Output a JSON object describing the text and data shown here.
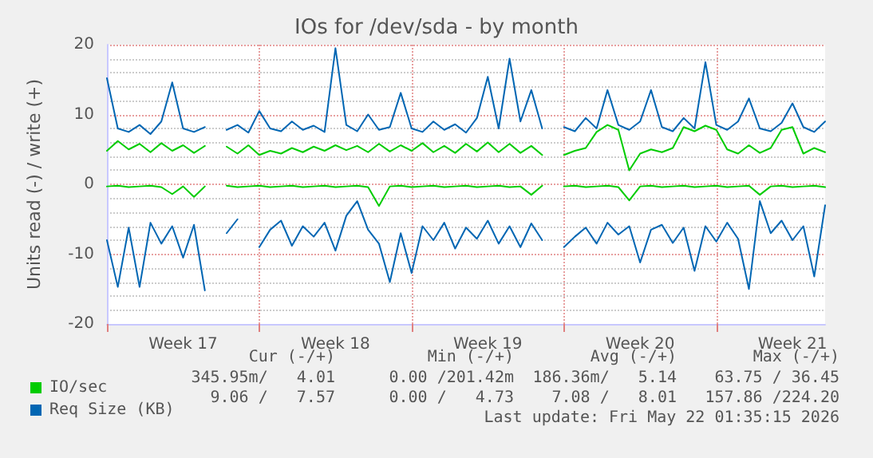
{
  "chart_data": {
    "type": "line",
    "title": "IOs for /dev/sda - by month",
    "ylabel": "Units read (-) / write (+)",
    "categories": [
      null,
      null,
      null,
      null,
      null,
      null,
      null,
      "Week 17",
      null,
      null,
      null,
      null,
      null,
      null,
      null,
      null,
      null,
      null,
      null,
      null,
      null,
      "Week 18",
      null,
      null,
      null,
      null,
      null,
      null,
      null,
      null,
      null,
      null,
      null,
      null,
      null,
      "Week 19",
      null,
      null,
      null,
      null,
      null,
      null,
      null,
      null,
      null,
      null,
      null,
      null,
      null,
      "Week 20",
      null,
      null,
      null,
      null,
      null,
      null,
      null,
      null,
      null,
      null,
      null,
      null,
      null,
      "Week 21",
      null,
      null,
      null
    ],
    "ylim": [
      -20,
      20
    ],
    "yticks": [
      -20,
      -10,
      0,
      10,
      20
    ],
    "grid": true,
    "legend": "bottom left",
    "marker": "none",
    "line_style": "solid",
    "series": [
      {
        "name": "IO/sec",
        "color": "#00cc00",
        "values": [
          4.8,
          6.2,
          5,
          5.8,
          4.6,
          5.9,
          4.8,
          5.6,
          4.5,
          5.5,
          null,
          5.4,
          4.4,
          5.6,
          4.2,
          4.8,
          4.4,
          5.2,
          4.6,
          5.4,
          4.8,
          5.6,
          4.9,
          5.5,
          4.6,
          5.8,
          4.7,
          5.6,
          4.8,
          5.9,
          4.6,
          5.5,
          4.5,
          5.8,
          4.7,
          6,
          4.6,
          5.8,
          4.5,
          5.5,
          4.2,
          null,
          4.2,
          4.8,
          5.2,
          7.5,
          8.5,
          7.8,
          2,
          4.4,
          5,
          4.6,
          5.2,
          8.2,
          7.6,
          8.4,
          7.8,
          5,
          4.4,
          5.6,
          4.5,
          5.2,
          7.8,
          8.2,
          4.4,
          5.2,
          4.6
        ]
      },
      {
        "color": "#00cc00",
        "values": [
          -0.3,
          -0.2,
          -0.4,
          -0.3,
          -0.2,
          -0.4,
          -1.4,
          -0.3,
          -1.8,
          -0.3,
          null,
          -0.2,
          -0.4,
          -0.3,
          -0.2,
          -0.4,
          -0.3,
          -0.2,
          -0.4,
          -0.3,
          -0.2,
          -0.4,
          -0.3,
          -0.2,
          -0.4,
          -3.1,
          -0.3,
          -0.2,
          -0.4,
          -0.3,
          -0.2,
          -0.4,
          -0.3,
          -0.2,
          -0.4,
          -0.3,
          -0.2,
          -0.4,
          -0.3,
          -1.5,
          -0.2,
          null,
          -0.3,
          -0.2,
          -0.4,
          -0.3,
          -0.2,
          -0.4,
          -2.3,
          -0.3,
          -0.2,
          -0.4,
          -0.3,
          -0.2,
          -0.4,
          -0.3,
          -0.2,
          -0.4,
          -0.3,
          -0.2,
          -1.5,
          -0.3,
          -0.2,
          -0.4,
          -0.3,
          -0.2,
          -0.4
        ]
      },
      {
        "name": "Req Size (KB)",
        "color": "#0066b3",
        "values": [
          15.2,
          8,
          7.5,
          8.5,
          7.2,
          9,
          14.6,
          8,
          7.5,
          8.2,
          null,
          7.8,
          8.5,
          7.4,
          10.5,
          8,
          7.6,
          9,
          7.8,
          8.4,
          7.5,
          19.5,
          8.5,
          7.6,
          10,
          7.8,
          8.2,
          13.1,
          8,
          7.5,
          9,
          7.8,
          8.6,
          7.4,
          9.5,
          15.4,
          8,
          18,
          9,
          13.5,
          8,
          null,
          8.2,
          7.6,
          9.5,
          8,
          13.5,
          8.5,
          7.8,
          9,
          13.5,
          8.2,
          7.6,
          9.5,
          8,
          17.5,
          8.5,
          7.8,
          9,
          12.3,
          8,
          7.6,
          8.8,
          11.6,
          8.2,
          7.5,
          9
        ]
      },
      {
        "color": "#0066b3",
        "values": [
          -8,
          -14.7,
          -6.2,
          -14.7,
          -5.5,
          -8.5,
          -6,
          -10.5,
          -5.8,
          -15.2,
          null,
          -7,
          -5,
          null,
          -9,
          -6.5,
          -5.2,
          -8.8,
          -6,
          -7.5,
          -5.5,
          -9.5,
          -4.5,
          -2.4,
          -6.5,
          -8.5,
          -14,
          -7,
          -12.7,
          -6,
          -8,
          -5.5,
          -9.2,
          -6.2,
          -7.8,
          -5.2,
          -8.5,
          -6,
          -9,
          -5.6,
          -8,
          null,
          -9,
          -7.5,
          -6.2,
          -8.5,
          -5.5,
          -7.2,
          -6,
          -11.2,
          -6.5,
          -5.8,
          -8.4,
          -6.2,
          -12.4,
          -6,
          -8.2,
          -5.5,
          -7.8,
          -15,
          -2.4,
          -7,
          -5.2,
          -8,
          -6,
          -13.2,
          -3
        ]
      }
    ],
    "annotations": [
      "Cur (-/+)",
      "Min (-/+)",
      "Avg (-/+)",
      "Max (-/+)",
      "345.95m/   4.01",
      "0.00 /201.42m",
      "186.36m/   5.14",
      "63.75 / 36.45",
      "9.06 /   7.57",
      "0.00 /   4.73",
      "7.08 /   8.01",
      "157.86 /224.20",
      "Last update: Fri May 22 01:35:15 2026"
    ]
  }
}
